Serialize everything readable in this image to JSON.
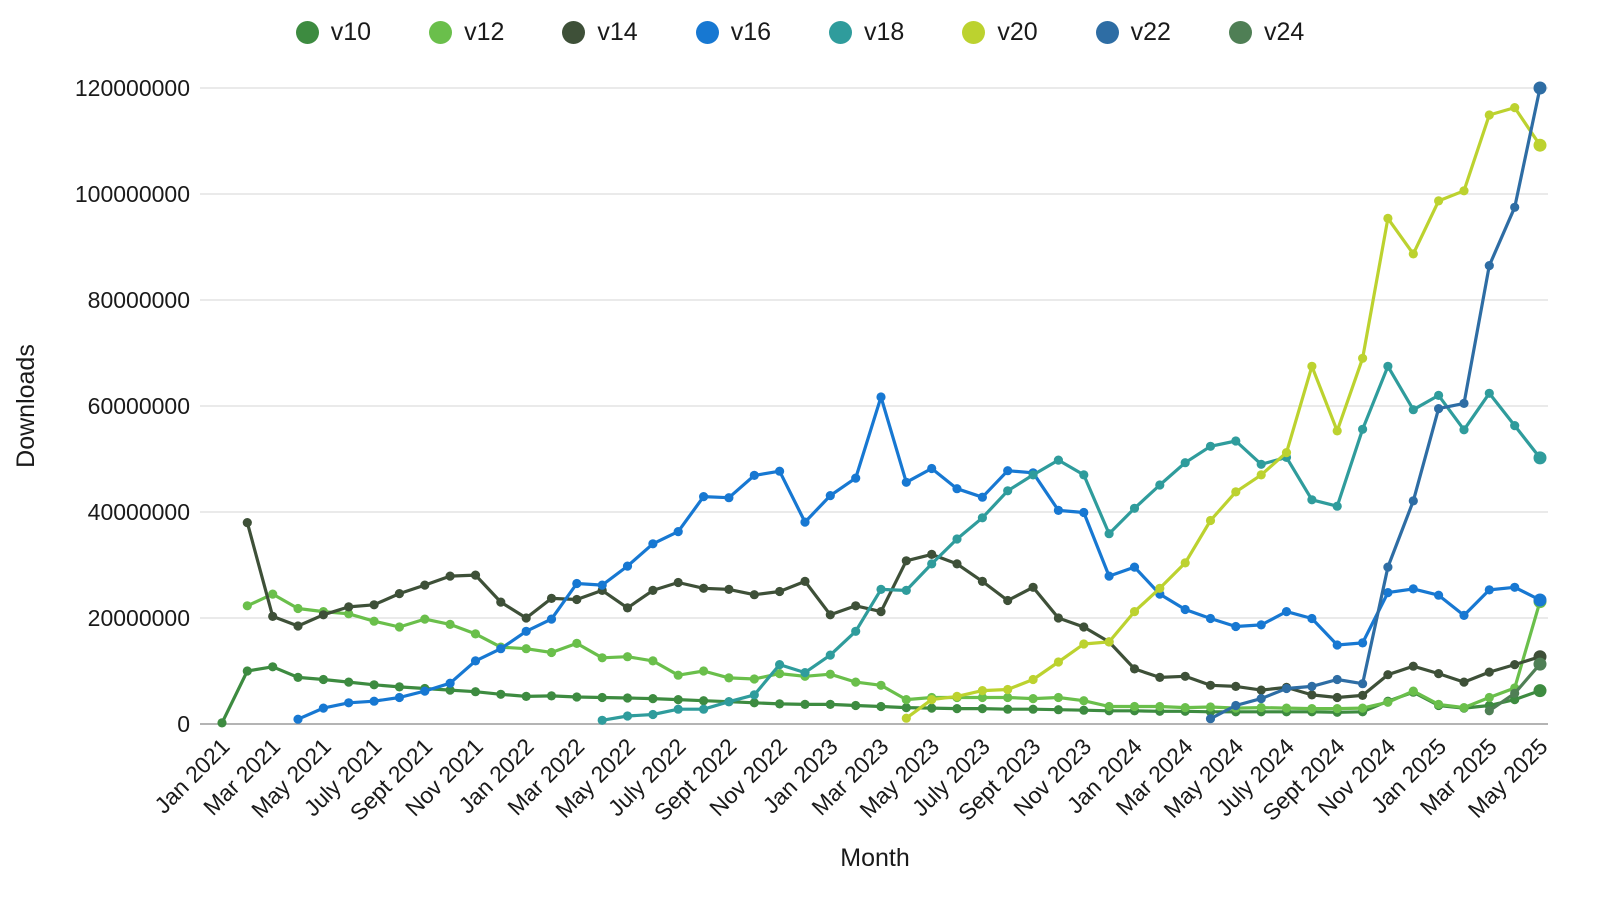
{
  "chart_data": {
    "type": "line",
    "title": "",
    "xlabel": "Month",
    "ylabel": "Downloads",
    "ylim": [
      0,
      120000000
    ],
    "yticks": [
      0,
      20000000,
      40000000,
      60000000,
      80000000,
      100000000,
      120000000
    ],
    "grid": "horizontal",
    "legend_position": "top",
    "x": [
      "Jan 2021",
      "Feb 2021",
      "Mar 2021",
      "Apr 2021",
      "May 2021",
      "June 2021",
      "July 2021",
      "Aug 2021",
      "Sept 2021",
      "Oct 2021",
      "Nov 2021",
      "Dec 2021",
      "Jan 2022",
      "Feb 2022",
      "Mar 2022",
      "Apr 2022",
      "May 2022",
      "June 2022",
      "July 2022",
      "Aug 2022",
      "Sept 2022",
      "Oct 2022",
      "Nov 2022",
      "Dec 2022",
      "Jan 2023",
      "Feb 2023",
      "Mar 2023",
      "Apr 2023",
      "May 2023",
      "June 2023",
      "July 2023",
      "Aug 2023",
      "Sept 2023",
      "Oct 2023",
      "Nov 2023",
      "Dec 2023",
      "Jan 2024",
      "Feb 2024",
      "Mar 2024",
      "Apr 2024",
      "May 2024",
      "June 2024",
      "July 2024",
      "Aug 2024",
      "Sept 2024",
      "Oct 2024",
      "Nov 2024",
      "Dec 2024",
      "Jan 2025",
      "Feb 2025",
      "Mar 2025",
      "Apr 2025",
      "May 2025"
    ],
    "xtick_labels": [
      "Jan 2021",
      "Mar 2021",
      "May 2021",
      "July 2021",
      "Sept 2021",
      "Nov 2021",
      "Jan 2022",
      "Mar 2022",
      "May 2022",
      "July 2022",
      "Sept 2022",
      "Nov 2022",
      "Jan 2023",
      "Mar 2023",
      "May 2023",
      "July 2023",
      "Sept 2023",
      "Nov 2023",
      "Jan 2024",
      "Mar 2024",
      "May 2024",
      "July 2024",
      "Sept 2024",
      "Nov 2024",
      "Jan 2025",
      "Mar 2025",
      "May 2025"
    ],
    "series": [
      {
        "name": "v10",
        "color": "#3d8b40",
        "values": [
          200000,
          10000000,
          10800000,
          8800000,
          8400000,
          7900000,
          7400000,
          7000000,
          6700000,
          6400000,
          6100000,
          5600000,
          5200000,
          5300000,
          5100000,
          5000000,
          4900000,
          4800000,
          4600000,
          4400000,
          4200000,
          4000000,
          3800000,
          3700000,
          3700000,
          3500000,
          3300000,
          3100000,
          3000000,
          2900000,
          2900000,
          2800000,
          2800000,
          2700000,
          2600000,
          2500000,
          2500000,
          2400000,
          2400000,
          2300000,
          2300000,
          2300000,
          2300000,
          2300000,
          2200000,
          2300000,
          4300000,
          6000000,
          3500000,
          3000000,
          3500000,
          4600000,
          6300000
        ]
      },
      {
        "name": "v12",
        "color": "#6abf4b",
        "values": [
          null,
          22300000,
          24500000,
          21800000,
          21200000,
          20800000,
          19400000,
          18300000,
          19800000,
          18800000,
          17000000,
          14500000,
          14200000,
          13500000,
          15200000,
          12500000,
          12700000,
          11900000,
          9200000,
          10000000,
          8700000,
          8500000,
          9500000,
          9000000,
          9400000,
          7900000,
          7300000,
          4600000,
          5000000,
          5000000,
          5000000,
          5000000,
          4800000,
          5000000,
          4400000,
          3300000,
          3300000,
          3300000,
          3100000,
          3200000,
          3000000,
          3100000,
          3000000,
          2900000,
          2900000,
          3000000,
          4100000,
          6200000,
          3700000,
          3100000,
          5000000,
          6800000,
          23100000
        ]
      },
      {
        "name": "v14",
        "color": "#3e5038",
        "values": [
          null,
          38000000,
          20300000,
          18500000,
          20600000,
          22100000,
          22500000,
          24600000,
          26200000,
          27900000,
          28100000,
          23000000,
          20000000,
          23700000,
          23500000,
          25200000,
          21900000,
          25200000,
          26700000,
          25600000,
          25400000,
          24400000,
          25000000,
          26900000,
          20600000,
          22300000,
          21200000,
          30800000,
          32000000,
          30200000,
          26900000,
          23300000,
          25800000,
          20000000,
          18300000,
          15500000,
          10400000,
          8800000,
          9000000,
          7300000,
          7100000,
          6400000,
          6900000,
          5500000,
          5000000,
          5400000,
          9300000,
          10900000,
          9500000,
          7900000,
          9800000,
          11200000,
          12700000
        ]
      },
      {
        "name": "v16",
        "color": "#1778d2",
        "values": [
          null,
          null,
          null,
          900000,
          3000000,
          4000000,
          4300000,
          5000000,
          6200000,
          7700000,
          11900000,
          14200000,
          17500000,
          19800000,
          26500000,
          26200000,
          29800000,
          34000000,
          36300000,
          42900000,
          42700000,
          46900000,
          47700000,
          38100000,
          43100000,
          46400000,
          61700000,
          45600000,
          48200000,
          44400000,
          42800000,
          47800000,
          47400000,
          40300000,
          39900000,
          27900000,
          29600000,
          24500000,
          21600000,
          19900000,
          18400000,
          18700000,
          21200000,
          19900000,
          14900000,
          15300000,
          24800000,
          25500000,
          24300000,
          20500000,
          25300000,
          25800000,
          23400000
        ]
      },
      {
        "name": "v18",
        "color": "#2f9c9c",
        "values": [
          null,
          null,
          null,
          null,
          null,
          null,
          null,
          null,
          null,
          null,
          null,
          null,
          null,
          null,
          null,
          700000,
          1500000,
          1800000,
          2800000,
          2800000,
          4200000,
          5500000,
          11200000,
          9700000,
          13000000,
          17500000,
          25400000,
          25200000,
          30200000,
          34900000,
          38900000,
          44000000,
          47000000,
          49800000,
          47000000,
          35900000,
          40700000,
          45100000,
          49300000,
          52400000,
          53400000,
          49000000,
          50300000,
          42300000,
          41100000,
          55600000,
          67500000,
          59300000,
          62000000,
          55500000,
          62400000,
          56300000,
          50200000
        ]
      },
      {
        "name": "v20",
        "color": "#bcd22f",
        "values": [
          null,
          null,
          null,
          null,
          null,
          null,
          null,
          null,
          null,
          null,
          null,
          null,
          null,
          null,
          null,
          null,
          null,
          null,
          null,
          null,
          null,
          null,
          null,
          null,
          null,
          null,
          null,
          1100000,
          4600000,
          5200000,
          6300000,
          6500000,
          8400000,
          11700000,
          15100000,
          15500000,
          21200000,
          25600000,
          30400000,
          38400000,
          43800000,
          47000000,
          51200000,
          67500000,
          55300000,
          69000000,
          95400000,
          88700000,
          98700000,
          100600000,
          114900000,
          116300000,
          109200000
        ]
      },
      {
        "name": "v22",
        "color": "#2e6da4",
        "values": [
          null,
          null,
          null,
          null,
          null,
          null,
          null,
          null,
          null,
          null,
          null,
          null,
          null,
          null,
          null,
          null,
          null,
          null,
          null,
          null,
          null,
          null,
          null,
          null,
          null,
          null,
          null,
          null,
          null,
          null,
          null,
          null,
          null,
          null,
          null,
          null,
          null,
          null,
          null,
          1000000,
          3500000,
          4800000,
          6700000,
          7100000,
          8400000,
          7600000,
          29600000,
          42100000,
          59500000,
          60500000,
          86500000,
          97500000,
          120000000
        ]
      },
      {
        "name": "v24",
        "color": "#4f7f55",
        "values": [
          null,
          null,
          null,
          null,
          null,
          null,
          null,
          null,
          null,
          null,
          null,
          null,
          null,
          null,
          null,
          null,
          null,
          null,
          null,
          null,
          null,
          null,
          null,
          null,
          null,
          null,
          null,
          null,
          null,
          null,
          null,
          null,
          null,
          null,
          null,
          null,
          null,
          null,
          null,
          null,
          null,
          null,
          null,
          null,
          null,
          null,
          null,
          null,
          null,
          null,
          2500000,
          5800000,
          11300000
        ]
      }
    ]
  }
}
